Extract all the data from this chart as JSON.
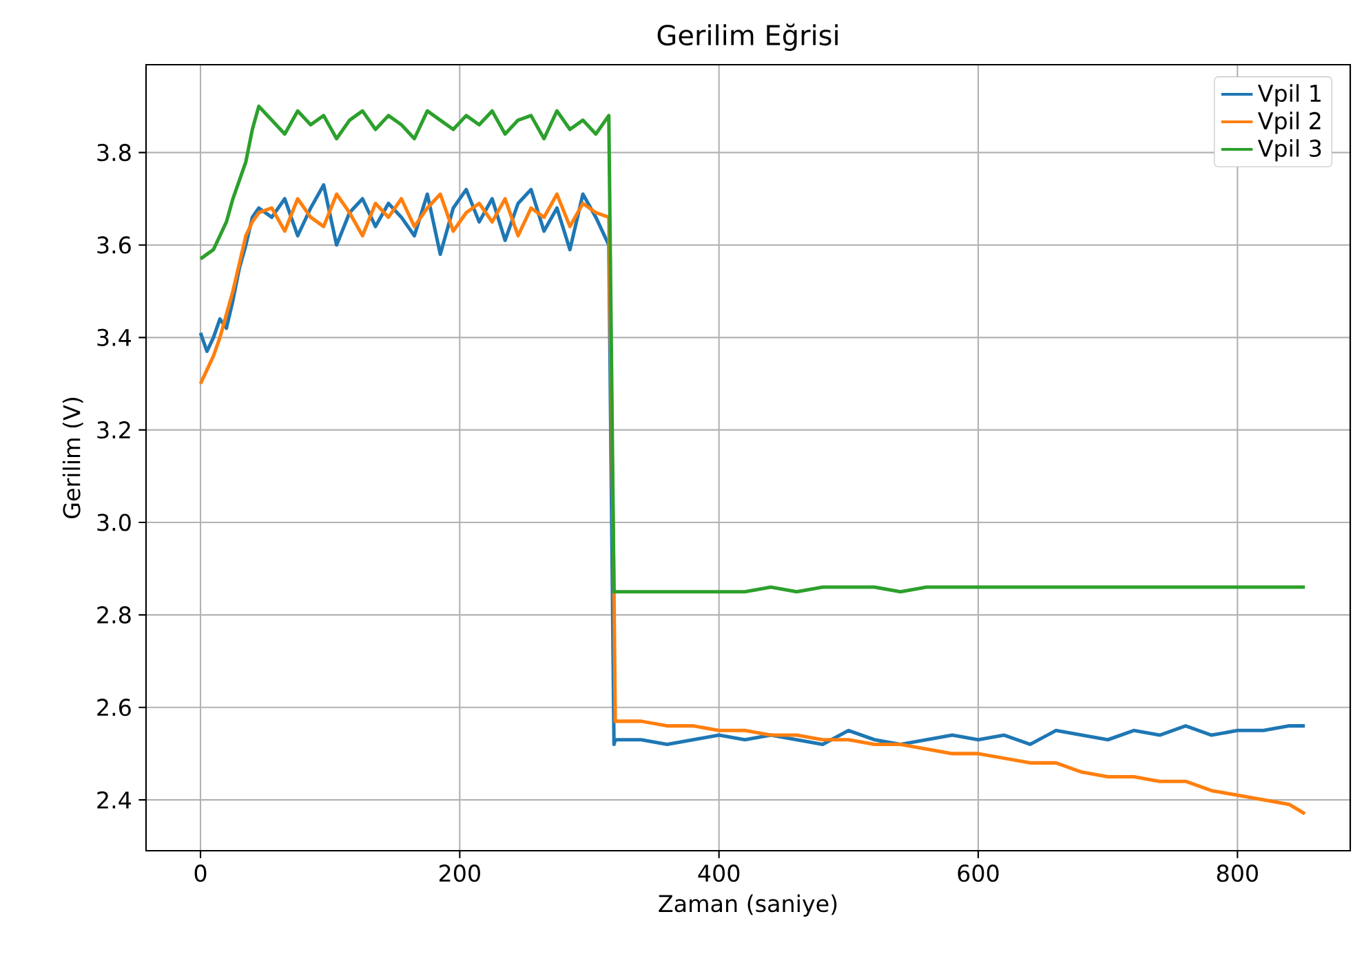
{
  "chart_data": {
    "type": "line",
    "title": "Gerilim Eğrisi",
    "xlabel": "Zaman (saniye)",
    "ylabel": "Gerilim (V)",
    "x": [
      0,
      5,
      10,
      15,
      20,
      25,
      30,
      35,
      40,
      45,
      55,
      65,
      75,
      85,
      95,
      105,
      115,
      125,
      135,
      145,
      155,
      165,
      175,
      185,
      195,
      205,
      215,
      225,
      235,
      245,
      255,
      265,
      275,
      285,
      295,
      305,
      315,
      319,
      320,
      340,
      360,
      380,
      400,
      420,
      440,
      460,
      480,
      500,
      520,
      540,
      560,
      580,
      600,
      620,
      640,
      660,
      680,
      700,
      720,
      740,
      760,
      780,
      800,
      820,
      840,
      852
    ],
    "series": [
      {
        "name": "Vpil 1",
        "color": "#1f77b4",
        "values": [
          3.41,
          3.37,
          3.4,
          3.44,
          3.42,
          3.48,
          3.55,
          3.6,
          3.66,
          3.68,
          3.66,
          3.7,
          3.62,
          3.68,
          3.73,
          3.6,
          3.67,
          3.7,
          3.64,
          3.69,
          3.66,
          3.62,
          3.71,
          3.58,
          3.68,
          3.72,
          3.65,
          3.7,
          3.61,
          3.69,
          3.72,
          3.63,
          3.68,
          3.59,
          3.71,
          3.66,
          3.6,
          2.52,
          2.53,
          2.53,
          2.52,
          2.53,
          2.54,
          2.53,
          2.54,
          2.53,
          2.52,
          2.55,
          2.53,
          2.52,
          2.53,
          2.54,
          2.53,
          2.54,
          2.52,
          2.55,
          2.54,
          2.53,
          2.55,
          2.54,
          2.56,
          2.54,
          2.55,
          2.55,
          2.56,
          2.56
        ]
      },
      {
        "name": "Vpil 2",
        "color": "#ff7f0e",
        "values": [
          3.3,
          3.33,
          3.36,
          3.4,
          3.45,
          3.5,
          3.56,
          3.62,
          3.65,
          3.67,
          3.68,
          3.63,
          3.7,
          3.66,
          3.64,
          3.71,
          3.67,
          3.62,
          3.69,
          3.66,
          3.7,
          3.64,
          3.68,
          3.71,
          3.63,
          3.67,
          3.69,
          3.65,
          3.7,
          3.62,
          3.68,
          3.66,
          3.71,
          3.64,
          3.69,
          3.67,
          3.66,
          2.85,
          2.57,
          2.57,
          2.56,
          2.56,
          2.55,
          2.55,
          2.54,
          2.54,
          2.53,
          2.53,
          2.52,
          2.52,
          2.51,
          2.5,
          2.5,
          2.49,
          2.48,
          2.48,
          2.46,
          2.45,
          2.45,
          2.44,
          2.44,
          2.42,
          2.41,
          2.4,
          2.39,
          2.37
        ]
      },
      {
        "name": "Vpil 3",
        "color": "#2ca02c",
        "values": [
          3.57,
          3.58,
          3.59,
          3.62,
          3.65,
          3.7,
          3.74,
          3.78,
          3.85,
          3.9,
          3.87,
          3.84,
          3.89,
          3.86,
          3.88,
          3.83,
          3.87,
          3.89,
          3.85,
          3.88,
          3.86,
          3.83,
          3.89,
          3.87,
          3.85,
          3.88,
          3.86,
          3.89,
          3.84,
          3.87,
          3.88,
          3.83,
          3.89,
          3.85,
          3.87,
          3.84,
          3.88,
          2.85,
          2.85,
          2.85,
          2.85,
          2.85,
          2.85,
          2.85,
          2.86,
          2.85,
          2.86,
          2.86,
          2.86,
          2.85,
          2.86,
          2.86,
          2.86,
          2.86,
          2.86,
          2.86,
          2.86,
          2.86,
          2.86,
          2.86,
          2.86,
          2.86,
          2.86,
          2.86,
          2.86,
          2.86
        ]
      }
    ],
    "xlim": [
      -42,
      887
    ],
    "ylim": [
      2.29,
      3.99
    ],
    "xticks": [
      0,
      200,
      400,
      600,
      800
    ],
    "yticks": [
      2.4,
      2.6,
      2.8,
      {
        "value": 3,
        "label": "3.0"
      },
      3.2,
      3.4,
      3.6,
      3.8
    ],
    "grid": true,
    "legend": "top right",
    "marker": "none",
    "line_style": "solid"
  }
}
